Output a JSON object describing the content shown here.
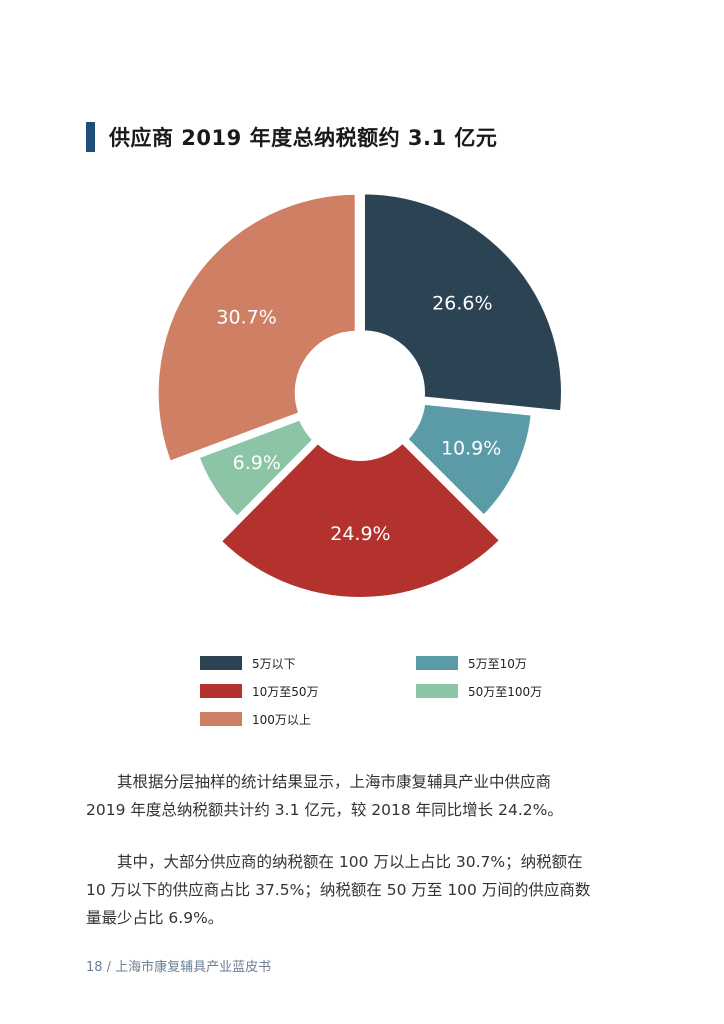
{
  "heading": {
    "title": "供应商 2019 年度总纳税额约 3.1 亿元"
  },
  "colors": {
    "heading_bar": "#1f4e79",
    "slices": [
      "#2c4354",
      "#5b9ba7",
      "#b3322e",
      "#8cc4a6",
      "#cf7f63"
    ]
  },
  "chart_data": {
    "type": "pie",
    "variant": "donut",
    "title": "",
    "categories": [
      "5万以下",
      "5万至10万",
      "10万至50万",
      "50万至100万",
      "100万以上"
    ],
    "values": [
      26.6,
      10.9,
      24.9,
      6.9,
      30.7
    ],
    "data_labels": [
      "26.6%",
      "10.9%",
      "24.9%",
      "6.9%",
      "30.7%"
    ],
    "legend_position": "bottom"
  },
  "legend": {
    "items": [
      {
        "label": "5万以下"
      },
      {
        "label": "5万至10万"
      },
      {
        "label": "10万至50万"
      },
      {
        "label": "50万至100万"
      },
      {
        "label": "100万以上"
      }
    ]
  },
  "body": {
    "p1_line1": "其根据分层抽样的统计结果显示，上海市康复辅具产业中供应商",
    "p1_line2": "2019 年度总纳税额共计约 3.1 亿元，较 2018 年同比增长 24.2%。",
    "p2_line1": "其中，大部分供应商的纳税额在 100 万以上占比 30.7%；纳税额在",
    "p2_line2": "10 万以下的供应商占比 37.5%；纳税额在 50 万至 100 万间的供应商数",
    "p2_line3": "量最少占比 6.9%。"
  },
  "footer": {
    "text": "18 / 上海市康复辅具产业蓝皮书"
  }
}
